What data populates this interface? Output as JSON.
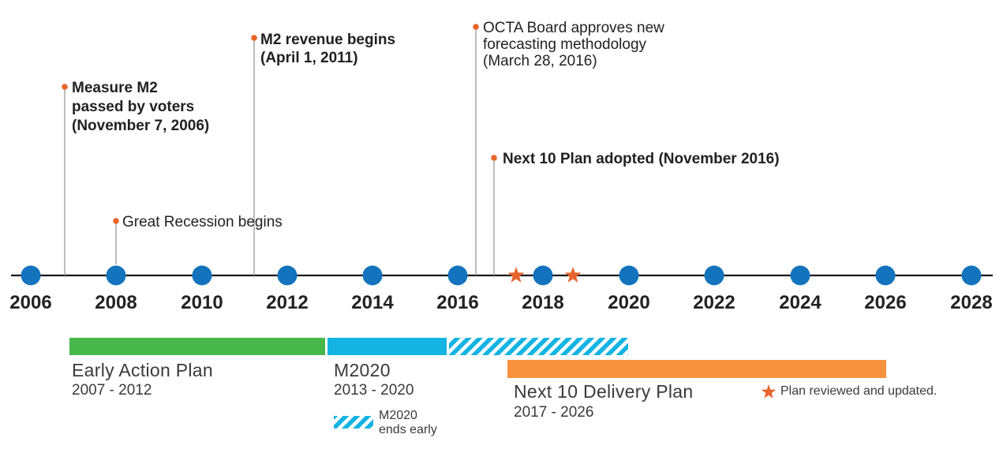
{
  "colors": {
    "axis": "#1a1a1a",
    "dot": "#1373bc",
    "event_dot": "#e8642a",
    "star": "#e8642a",
    "leader": "#9a9a9a",
    "early_action": "#47b64b",
    "m2020": "#13b4e2",
    "next10": "#f8923f"
  },
  "years": [
    "2006",
    "2008",
    "2010",
    "2012",
    "2014",
    "2016",
    "2018",
    "2020",
    "2022",
    "2024",
    "2026",
    "2028"
  ],
  "events": [
    {
      "lines": [
        "Measure M2",
        "passed by voters",
        "(November 7, 2006)"
      ],
      "bold": true
    },
    {
      "lines": [
        "Great Recession begins"
      ],
      "bold": false
    },
    {
      "lines": [
        "M2 revenue begins",
        "(April 1, 2011)"
      ],
      "bold": true
    },
    {
      "lines": [
        "OCTA Board approves new",
        "forecasting methodology",
        "(March 28, 2016)"
      ],
      "bold": false
    },
    {
      "lines": [
        "Next 10 Plan adopted (November 2016)"
      ],
      "bold": true
    }
  ],
  "plans": {
    "early_action": {
      "title": "Early Action Plan",
      "range": "2007 - 2012"
    },
    "m2020": {
      "title": "M2020",
      "range": "2013 - 2020",
      "note_line1": "M2020",
      "note_line2": "ends early"
    },
    "next10": {
      "title": "Next 10 Delivery Plan",
      "range": "2017 - 2026"
    }
  },
  "legend": {
    "star_text": "Plan reviewed and updated."
  }
}
